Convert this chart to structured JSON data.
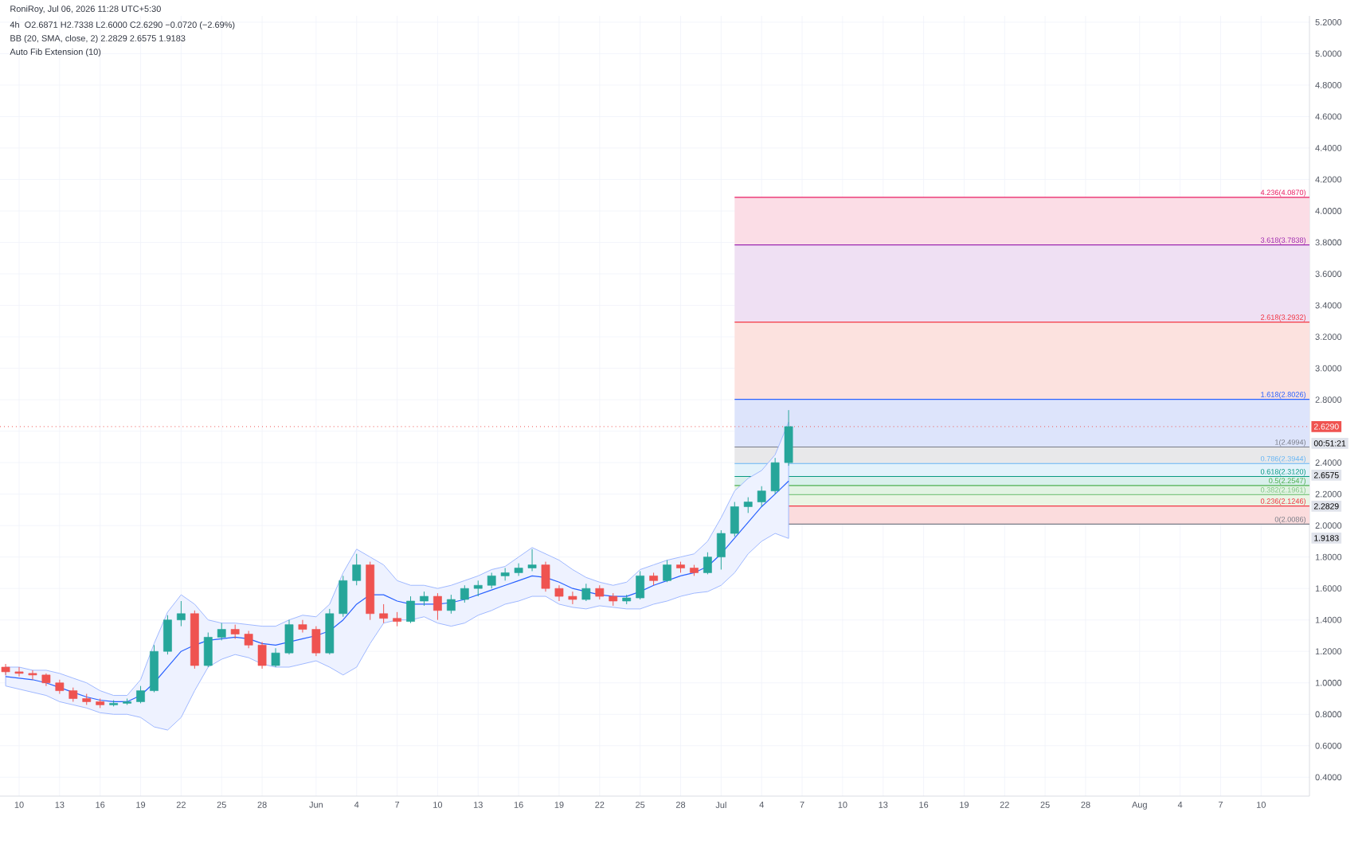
{
  "chart_data": {
    "type": "candlestick",
    "title": "4h",
    "annotations": [
      "RoniRoy, Jul 06, 2026 11:28 UTC+5:30",
      "O2.6871 H2.7338 L2.6000 C2.6290 −0.0720 (−2.69%)",
      "BB (20, SMA, close, 2) 2.2829 2.6575 1.9183",
      "Auto Fib Extension (10)",
      "00:51:21",
      "2.6575",
      "2.2829",
      "1.9183"
    ],
    "x": [
      "2026-05-09",
      "2026-05-10",
      "2026-05-11",
      "2026-05-12",
      "2026-05-13",
      "2026-05-14",
      "2026-05-15",
      "2026-05-16",
      "2026-05-17",
      "2026-05-18",
      "2026-05-19",
      "2026-05-20",
      "2026-05-21",
      "2026-05-22",
      "2026-05-23",
      "2026-05-24",
      "2026-05-25",
      "2026-05-26",
      "2026-05-27",
      "2026-05-28",
      "2026-05-29",
      "2026-05-30",
      "2026-05-31",
      "2026-06-01",
      "2026-06-02",
      "2026-06-03",
      "2026-06-04",
      "2026-06-05",
      "2026-06-06",
      "2026-06-07",
      "2026-06-08",
      "2026-06-09",
      "2026-06-10",
      "2026-06-11",
      "2026-06-12",
      "2026-06-13",
      "2026-06-14",
      "2026-06-15",
      "2026-06-16",
      "2026-06-17",
      "2026-06-18",
      "2026-06-19",
      "2026-06-20",
      "2026-06-21",
      "2026-06-22",
      "2026-06-23",
      "2026-06-24",
      "2026-06-25",
      "2026-06-26",
      "2026-06-27",
      "2026-06-28",
      "2026-06-29",
      "2026-06-30",
      "2026-07-01",
      "2026-07-02",
      "2026-07-03",
      "2026-07-04",
      "2026-07-05",
      "2026-07-06"
    ],
    "ohlc": [
      [
        1.1,
        1.12,
        1.05,
        1.07
      ],
      [
        1.07,
        1.1,
        1.04,
        1.06
      ],
      [
        1.06,
        1.08,
        1.02,
        1.05
      ],
      [
        1.05,
        1.06,
        0.98,
        1.0
      ],
      [
        1.0,
        1.02,
        0.93,
        0.95
      ],
      [
        0.95,
        0.97,
        0.88,
        0.9
      ],
      [
        0.9,
        0.93,
        0.86,
        0.88
      ],
      [
        0.88,
        0.9,
        0.84,
        0.86
      ],
      [
        0.86,
        0.89,
        0.85,
        0.87
      ],
      [
        0.87,
        0.9,
        0.86,
        0.88
      ],
      [
        0.88,
        0.98,
        0.87,
        0.95
      ],
      [
        0.95,
        1.24,
        0.94,
        1.2
      ],
      [
        1.2,
        1.43,
        1.18,
        1.4
      ],
      [
        1.4,
        1.52,
        1.36,
        1.44
      ],
      [
        1.44,
        1.46,
        1.09,
        1.11
      ],
      [
        1.11,
        1.32,
        1.1,
        1.29
      ],
      [
        1.29,
        1.38,
        1.27,
        1.34
      ],
      [
        1.34,
        1.37,
        1.28,
        1.31
      ],
      [
        1.31,
        1.33,
        1.22,
        1.24
      ],
      [
        1.24,
        1.26,
        1.09,
        1.11
      ],
      [
        1.11,
        1.22,
        1.1,
        1.19
      ],
      [
        1.19,
        1.4,
        1.18,
        1.37
      ],
      [
        1.37,
        1.4,
        1.32,
        1.34
      ],
      [
        1.34,
        1.36,
        1.17,
        1.19
      ],
      [
        1.19,
        1.47,
        1.18,
        1.44
      ],
      [
        1.44,
        1.68,
        1.42,
        1.65
      ],
      [
        1.65,
        1.82,
        1.62,
        1.75
      ],
      [
        1.75,
        1.77,
        1.4,
        1.44
      ],
      [
        1.44,
        1.5,
        1.38,
        1.41
      ],
      [
        1.41,
        1.45,
        1.36,
        1.39
      ],
      [
        1.39,
        1.55,
        1.38,
        1.52
      ],
      [
        1.52,
        1.58,
        1.49,
        1.55
      ],
      [
        1.55,
        1.57,
        1.4,
        1.46
      ],
      [
        1.46,
        1.56,
        1.44,
        1.53
      ],
      [
        1.53,
        1.62,
        1.51,
        1.6
      ],
      [
        1.6,
        1.65,
        1.55,
        1.62
      ],
      [
        1.62,
        1.7,
        1.6,
        1.68
      ],
      [
        1.68,
        1.73,
        1.65,
        1.7
      ],
      [
        1.7,
        1.76,
        1.68,
        1.73
      ],
      [
        1.73,
        1.85,
        1.71,
        1.75
      ],
      [
        1.75,
        1.77,
        1.58,
        1.6
      ],
      [
        1.6,
        1.62,
        1.52,
        1.55
      ],
      [
        1.55,
        1.58,
        1.5,
        1.53
      ],
      [
        1.53,
        1.63,
        1.52,
        1.6
      ],
      [
        1.6,
        1.62,
        1.53,
        1.55
      ],
      [
        1.55,
        1.57,
        1.49,
        1.52
      ],
      [
        1.52,
        1.56,
        1.5,
        1.54
      ],
      [
        1.54,
        1.71,
        1.53,
        1.68
      ],
      [
        1.68,
        1.7,
        1.62,
        1.65
      ],
      [
        1.65,
        1.78,
        1.64,
        1.75
      ],
      [
        1.75,
        1.77,
        1.7,
        1.73
      ],
      [
        1.73,
        1.75,
        1.68,
        1.7
      ],
      [
        1.7,
        1.83,
        1.69,
        1.8
      ],
      [
        1.8,
        1.97,
        1.72,
        1.95
      ],
      [
        1.95,
        2.15,
        1.93,
        2.12
      ],
      [
        2.12,
        2.18,
        2.08,
        2.15
      ],
      [
        2.15,
        2.25,
        2.12,
        2.22
      ],
      [
        2.22,
        2.43,
        2.2,
        2.4
      ],
      [
        2.4,
        2.7338,
        2.38,
        2.629
      ]
    ],
    "colors": [
      "#ef5350",
      "#ef5350",
      "#ef5350",
      "#ef5350",
      "#ef5350",
      "#ef5350",
      "#ef5350",
      "#ef5350",
      "#26a69a",
      "#26a69a",
      "#26a69a",
      "#26a69a",
      "#26a69a",
      "#26a69a",
      "#ef5350",
      "#26a69a",
      "#26a69a",
      "#ef5350",
      "#ef5350",
      "#ef5350",
      "#26a69a",
      "#26a69a",
      "#ef5350",
      "#ef5350",
      "#26a69a",
      "#26a69a",
      "#26a69a",
      "#ef5350",
      "#ef5350",
      "#ef5350",
      "#26a69a",
      "#26a69a",
      "#ef5350",
      "#26a69a",
      "#26a69a",
      "#26a69a",
      "#26a69a",
      "#26a69a",
      "#26a69a",
      "#26a69a",
      "#ef5350",
      "#ef5350",
      "#ef5350",
      "#26a69a",
      "#ef5350",
      "#ef5350",
      "#26a69a",
      "#26a69a",
      "#ef5350",
      "#26a69a",
      "#ef5350",
      "#ef5350",
      "#26a69a",
      "#26a69a",
      "#26a69a",
      "#26a69a",
      "#26a69a",
      "#26a69a",
      "#26a69a"
    ],
    "series": [
      {
        "type": "line",
        "color": "#2962ff",
        "values": [
          1.04,
          1.03,
          1.02,
          1.0,
          0.97,
          0.94,
          0.91,
          0.89,
          0.88,
          0.88,
          0.92,
          1.0,
          1.1,
          1.2,
          1.24,
          1.27,
          1.28,
          1.29,
          1.28,
          1.25,
          1.24,
          1.26,
          1.28,
          1.3,
          1.33,
          1.4,
          1.5,
          1.56,
          1.56,
          1.52,
          1.5,
          1.5,
          1.5,
          1.51,
          1.53,
          1.56,
          1.59,
          1.62,
          1.65,
          1.68,
          1.67,
          1.64,
          1.6,
          1.58,
          1.56,
          1.55,
          1.55,
          1.58,
          1.62,
          1.65,
          1.68,
          1.7,
          1.74,
          1.82,
          1.92,
          2.02,
          2.12,
          2.2,
          2.2829
        ],
        "upper": [
          1.1,
          1.1,
          1.08,
          1.08,
          1.06,
          1.03,
          1.0,
          0.95,
          0.92,
          0.92,
          1.02,
          1.25,
          1.45,
          1.56,
          1.5,
          1.4,
          1.38,
          1.38,
          1.37,
          1.36,
          1.36,
          1.4,
          1.43,
          1.42,
          1.5,
          1.7,
          1.85,
          1.8,
          1.75,
          1.65,
          1.62,
          1.62,
          1.6,
          1.62,
          1.65,
          1.68,
          1.72,
          1.74,
          1.8,
          1.86,
          1.82,
          1.78,
          1.72,
          1.67,
          1.64,
          1.62,
          1.64,
          1.72,
          1.75,
          1.78,
          1.8,
          1.82,
          1.9,
          2.05,
          2.22,
          2.3,
          2.35,
          2.45,
          2.6575
        ],
        "lower": [
          0.98,
          0.96,
          0.94,
          0.92,
          0.88,
          0.86,
          0.84,
          0.81,
          0.8,
          0.8,
          0.78,
          0.72,
          0.7,
          0.78,
          0.95,
          1.1,
          1.15,
          1.18,
          1.16,
          1.12,
          1.1,
          1.1,
          1.12,
          1.14,
          1.1,
          1.05,
          1.1,
          1.25,
          1.38,
          1.4,
          1.4,
          1.42,
          1.38,
          1.36,
          1.38,
          1.43,
          1.46,
          1.5,
          1.52,
          1.55,
          1.55,
          1.5,
          1.48,
          1.47,
          1.49,
          1.48,
          1.47,
          1.47,
          1.5,
          1.52,
          1.55,
          1.57,
          1.58,
          1.62,
          1.7,
          1.82,
          1.9,
          1.95,
          1.9183
        ]
      }
    ],
    "xlim": [
      "2026-05-08T14:00",
      "2026-08-13T14:00"
    ],
    "ylim": [
      0.28,
      5.24
    ],
    "xticks": [
      {
        "value": "2026-05-10",
        "label": "10"
      },
      {
        "value": "2026-05-13",
        "label": "13"
      },
      {
        "value": "2026-05-16",
        "label": "16"
      },
      {
        "value": "2026-05-19",
        "label": "19"
      },
      {
        "value": "2026-05-22",
        "label": "22"
      },
      {
        "value": "2026-05-25",
        "label": "25"
      },
      {
        "value": "2026-05-28",
        "label": "28"
      },
      {
        "value": "2026-06-01",
        "label": "Jun"
      },
      {
        "value": "2026-06-04",
        "label": "4"
      },
      {
        "value": "2026-06-07",
        "label": "7"
      },
      {
        "value": "2026-06-10",
        "label": "10"
      },
      {
        "value": "2026-06-13",
        "label": "13"
      },
      {
        "value": "2026-06-16",
        "label": "16"
      },
      {
        "value": "2026-06-19",
        "label": "19"
      },
      {
        "value": "2026-06-22",
        "label": "22"
      },
      {
        "value": "2026-06-25",
        "label": "25"
      },
      {
        "value": "2026-06-28",
        "label": "28"
      },
      {
        "value": "2026-07-01",
        "label": "Jul"
      },
      {
        "value": "2026-07-04",
        "label": "4"
      },
      {
        "value": "2026-07-07",
        "label": "7"
      },
      {
        "value": "2026-07-10",
        "label": "10"
      },
      {
        "value": "2026-07-13",
        "label": "13"
      },
      {
        "value": "2026-07-16",
        "label": "16"
      },
      {
        "value": "2026-07-19",
        "label": "19"
      },
      {
        "value": "2026-07-22",
        "label": "22"
      },
      {
        "value": "2026-07-25",
        "label": "25"
      },
      {
        "value": "2026-07-28",
        "label": "28"
      },
      {
        "value": "2026-08-01",
        "label": "Aug"
      },
      {
        "value": "2026-08-04",
        "label": "4"
      },
      {
        "value": "2026-08-07",
        "label": "7"
      },
      {
        "value": "2026-08-10",
        "label": "10"
      }
    ],
    "yticks": [
      {
        "value": 0.4,
        "label": "0.4000"
      },
      {
        "value": 0.6,
        "label": "0.6000"
      },
      {
        "value": 0.8,
        "label": "0.8000"
      },
      {
        "value": 1.0,
        "label": "1.0000"
      },
      {
        "value": 1.2,
        "label": "1.2000"
      },
      {
        "value": 1.4,
        "label": "1.4000"
      },
      {
        "value": 1.6,
        "label": "1.6000"
      },
      {
        "value": 1.8,
        "label": "1.8000"
      },
      {
        "value": 2.0,
        "label": "2.0000"
      },
      {
        "value": 2.2,
        "label": "2.2000"
      },
      {
        "value": 2.4,
        "label": "2.4000"
      },
      {
        "value": 2.6,
        "label": null
      },
      {
        "value": 2.8,
        "label": "2.8000"
      },
      {
        "value": 3.0,
        "label": "3.0000"
      },
      {
        "value": 3.2,
        "label": "3.2000"
      },
      {
        "value": 3.4,
        "label": "3.4000"
      },
      {
        "value": 3.6,
        "label": "3.6000"
      },
      {
        "value": 3.8,
        "label": "3.8000"
      },
      {
        "value": 4.0,
        "label": "4.0000"
      },
      {
        "value": 4.2,
        "label": "4.2000"
      },
      {
        "value": 4.4,
        "label": "4.4000"
      },
      {
        "value": 4.6,
        "label": "4.6000"
      },
      {
        "value": 4.8,
        "label": "4.8000"
      },
      {
        "value": 5.0,
        "label": "5.0000"
      },
      {
        "value": 5.2,
        "label": "5.2000"
      }
    ],
    "grid": true,
    "ref_lines": [
      {
        "axis": "y",
        "value": 2.629,
        "label": "2.6290",
        "color": "#ef5350",
        "line_style": "dotted"
      },
      {
        "axis": "y",
        "value": 2.0086,
        "label": "0(2.0086)",
        "color": "#787b86"
      },
      {
        "axis": "y",
        "value": 2.1246,
        "label": "0.236(2.1246)",
        "color": "#f23645"
      },
      {
        "axis": "y",
        "value": 2.1961,
        "label": "0.382(2.1961)",
        "color": "#81c784"
      },
      {
        "axis": "y",
        "value": 2.2547,
        "label": "0.5(2.2547)",
        "color": "#4caf50"
      },
      {
        "axis": "y",
        "value": 2.312,
        "label": "0.618(2.3120)",
        "color": "#089981"
      },
      {
        "axis": "y",
        "value": 2.3944,
        "label": "0.786(2.3944)",
        "color": "#64b5f6"
      },
      {
        "axis": "y",
        "value": 2.4994,
        "label": "1(2.4994)",
        "color": "#787b86"
      },
      {
        "axis": "y",
        "value": 2.8026,
        "label": "1.618(2.8026)",
        "color": "#2962ff"
      },
      {
        "axis": "y",
        "value": 3.2932,
        "label": "2.618(3.2932)",
        "color": "#f23645"
      },
      {
        "axis": "y",
        "value": 3.7838,
        "label": "3.618(3.7838)",
        "color": "#9c27b0"
      },
      {
        "axis": "y",
        "value": 4.087,
        "label": "4.236(4.0870)",
        "color": "#e91e63"
      }
    ],
    "bands": [
      {
        "axis": "y",
        "from": 2.0086,
        "to": 2.1246,
        "color": "#fbdcdd"
      },
      {
        "axis": "y",
        "from": 2.1246,
        "to": 2.1961,
        "color": "#eaf5e4"
      },
      {
        "axis": "y",
        "from": 2.1961,
        "to": 2.2547,
        "color": "#e2f3e3"
      },
      {
        "axis": "y",
        "from": 2.2547,
        "to": 2.312,
        "color": "#d9f0ec"
      },
      {
        "axis": "y",
        "from": 2.312,
        "to": 2.3944,
        "color": "#e3f2fb"
      },
      {
        "axis": "y",
        "from": 2.3944,
        "to": 2.4994,
        "color": "#e8e8ea"
      },
      {
        "axis": "y",
        "from": 2.4994,
        "to": 2.8026,
        "color": "#dde4fb"
      },
      {
        "axis": "y",
        "from": 2.8026,
        "to": 3.2932,
        "color": "#fce2df"
      },
      {
        "axis": "y",
        "from": 3.2932,
        "to": 3.7838,
        "color": "#efe0f3"
      },
      {
        "axis": "y",
        "from": 3.7838,
        "to": 4.087,
        "color": "#fbdde6"
      }
    ]
  }
}
